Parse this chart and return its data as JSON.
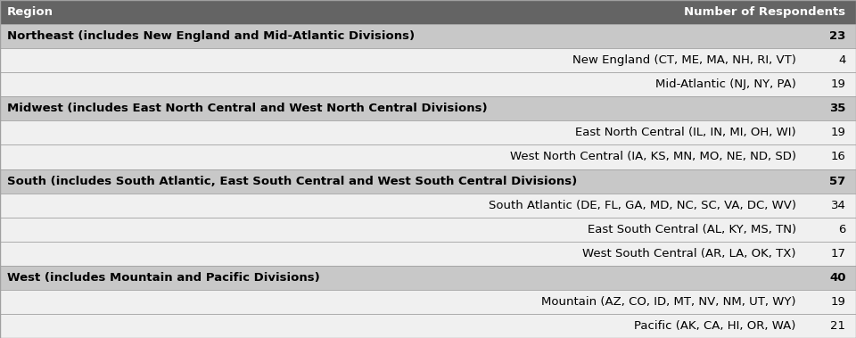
{
  "header": [
    "Region",
    "Number of Respondents"
  ],
  "rows": [
    {
      "label": "Northeast (includes New England and Mid-Atlantic Divisions)",
      "value": "23",
      "is_region": true
    },
    {
      "label": "New England (CT, ME, MA, NH, RI, VT)",
      "value": "4",
      "is_region": false
    },
    {
      "label": "Mid-Atlantic (NJ, NY, PA)",
      "value": "19",
      "is_region": false
    },
    {
      "label": "Midwest (includes East North Central and West North Central Divisions)",
      "value": "35",
      "is_region": true
    },
    {
      "label": "East North Central (IL, IN, MI, OH, WI)",
      "value": "19",
      "is_region": false
    },
    {
      "label": "West North Central (IA, KS, MN, MO, NE, ND, SD)",
      "value": "16",
      "is_region": false
    },
    {
      "label": "South (includes South Atlantic, East South Central and West South Central Divisions)",
      "value": "57",
      "is_region": true
    },
    {
      "label": "South Atlantic (DE, FL, GA, MD, NC, SC, VA, DC, WV)",
      "value": "34",
      "is_region": false
    },
    {
      "label": "East South Central (AL, KY, MS, TN)",
      "value": "6",
      "is_region": false
    },
    {
      "label": "West South Central (AR, LA, OK, TX)",
      "value": "17",
      "is_region": false
    },
    {
      "label": "West (includes Mountain and Pacific Divisions)",
      "value": "40",
      "is_region": true
    },
    {
      "label": "Mountain (AZ, CO, ID, MT, NV, NM, UT, WY)",
      "value": "19",
      "is_region": false
    },
    {
      "label": "Pacific (AK, CA, HI, OR, WA)",
      "value": "21",
      "is_region": false
    }
  ],
  "header_bg": "#646464",
  "header_text_color": "#ffffff",
  "region_bg": "#c8c8c8",
  "region_text_color": "#000000",
  "sub_bg": "#f0f0f0",
  "border_color": "#a0a0a0",
  "font_size": 9.5,
  "header_font_size": 9.5,
  "fig_width": 9.6,
  "fig_height": 3.79,
  "dpi": 100
}
